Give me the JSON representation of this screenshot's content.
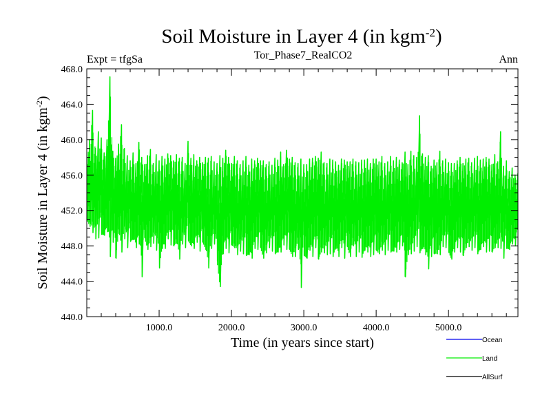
{
  "chart_data": {
    "type": "line",
    "title": "Soil Moisture in Layer 4 (in kgm",
    "title_sup": "-2",
    "title_close": ")",
    "subtitle_left": "Expt = tfgSa",
    "subtitle_center": "Tor_Phase7_RealCO2",
    "subtitle_right": "Ann",
    "xlabel": "Time (in years since start)",
    "ylabel": "Soil Moisture in Layer 4 (in kgm",
    "ylabel_sup": "-2",
    "ylabel_close": ")",
    "xlim": [
      0,
      5960
    ],
    "ylim": [
      440,
      468
    ],
    "xticks": [
      1000,
      2000,
      3000,
      4000,
      5000
    ],
    "xtick_labels": [
      "1000.0",
      "2000.0",
      "3000.0",
      "4000.0",
      "5000.0"
    ],
    "yticks": [
      440,
      444,
      448,
      452,
      456,
      460,
      464,
      468
    ],
    "ytick_labels": [
      "440.0",
      "444.0",
      "448.0",
      "452.0",
      "456.0",
      "460.0",
      "464.0",
      "468.0"
    ],
    "series": [
      {
        "name": "Land",
        "color": "#00ee00",
        "x": [
          0,
          40,
          80,
          120,
          160,
          200,
          240,
          280,
          320,
          360,
          400,
          440,
          480,
          520,
          560,
          600,
          640,
          680,
          720,
          760,
          800,
          840,
          880,
          920,
          960,
          1000,
          1040,
          1080,
          1120,
          1160,
          1200,
          1240,
          1280,
          1320,
          1360,
          1400,
          1440,
          1480,
          1520,
          1560,
          1600,
          1640,
          1680,
          1720,
          1760,
          1800,
          1840,
          1880,
          1920,
          1960,
          2000,
          2040,
          2080,
          2120,
          2160,
          2200,
          2240,
          2280,
          2320,
          2360,
          2400,
          2440,
          2480,
          2520,
          2560,
          2600,
          2640,
          2680,
          2720,
          2760,
          2800,
          2840,
          2880,
          2920,
          2960,
          3000,
          3040,
          3080,
          3120,
          3160,
          3200,
          3240,
          3280,
          3320,
          3360,
          3400,
          3440,
          3480,
          3520,
          3560,
          3600,
          3640,
          3680,
          3720,
          3760,
          3800,
          3840,
          3880,
          3920,
          3960,
          4000,
          4040,
          4080,
          4120,
          4160,
          4200,
          4240,
          4280,
          4320,
          4360,
          4400,
          4440,
          4480,
          4520,
          4560,
          4600,
          4640,
          4680,
          4720,
          4760,
          4800,
          4840,
          4880,
          4920,
          4960,
          5000,
          5040,
          5080,
          5120,
          5160,
          5200,
          5240,
          5280,
          5320,
          5360,
          5400,
          5440,
          5480,
          5520,
          5560,
          5600,
          5640,
          5680,
          5720,
          5760,
          5800,
          5840,
          5880,
          5920,
          5960
        ],
        "max": [
          458.0,
          460.0,
          463.3,
          459.0,
          460.9,
          460.2,
          458.5,
          460.0,
          467.1,
          458.7,
          457.9,
          459.5,
          461.7,
          459.0,
          458.2,
          457.6,
          458.5,
          457.3,
          459.7,
          458.0,
          457.2,
          458.2,
          458.9,
          457.3,
          458.3,
          457.6,
          458.1,
          457.8,
          458.4,
          458.2,
          457.6,
          458.3,
          457.9,
          458.0,
          457.3,
          459.8,
          457.9,
          458.3,
          457.6,
          458.0,
          457.4,
          458.0,
          457.9,
          458.1,
          457.5,
          457.3,
          458.2,
          457.9,
          458.8,
          458.0,
          457.3,
          458.1,
          457.6,
          457.2,
          457.6,
          458.1,
          457.1,
          457.8,
          457.6,
          457.9,
          457.6,
          457.6,
          457.2,
          457.5,
          457.1,
          457.9,
          457.7,
          458.6,
          457.2,
          458.8,
          457.8,
          458.0,
          457.4,
          457.3,
          457.8,
          457.2,
          457.2,
          457.8,
          457.9,
          458.1,
          457.9,
          458.6,
          457.4,
          457.3,
          457.8,
          457.7,
          457.5,
          457.1,
          457.8,
          457.7,
          457.5,
          457.5,
          457.8,
          457.5,
          457.4,
          457.7,
          457.7,
          457.8,
          457.3,
          457.8,
          457.8,
          457.5,
          458.1,
          457.3,
          457.5,
          458.1,
          457.6,
          458.0,
          457.7,
          457.4,
          458.6,
          457.2,
          458.7,
          458.2,
          458.0,
          462.7,
          458.4,
          458.0,
          458.2,
          457.0,
          457.7,
          457.4,
          458.7,
          457.6,
          457.8,
          457.4,
          457.3,
          457.3,
          457.6,
          458.0,
          457.3,
          457.8,
          457.9,
          457.4,
          457.9,
          458.1,
          457.7,
          457.8,
          458.0,
          457.8,
          457.2,
          458.3,
          457.5,
          460.9,
          457.0,
          457.6,
          456.4,
          456.8,
          456.0,
          456.2
        ],
        "min": [
          451.0,
          450.2,
          449.5,
          448.8,
          448.9,
          449.3,
          449.2,
          449.6,
          446.8,
          448.4,
          446.6,
          449.4,
          447.3,
          448.8,
          447.8,
          448.5,
          448.7,
          447.8,
          448.2,
          444.5,
          448.9,
          447.6,
          447.9,
          448.3,
          447.5,
          445.5,
          447.7,
          447.7,
          448.8,
          448.1,
          448.0,
          448.3,
          446.5,
          448.2,
          447.8,
          448.6,
          448.0,
          447.7,
          448.4,
          447.4,
          448.4,
          447.6,
          445.5,
          447.7,
          448.2,
          446.3,
          443.4,
          447.1,
          447.7,
          447.2,
          448.1,
          447.8,
          447.0,
          447.4,
          447.1,
          446.9,
          447.0,
          446.6,
          447.7,
          447.6,
          447.8,
          446.6,
          447.2,
          447.8,
          447.4,
          447.1,
          447.3,
          447.3,
          448.1,
          447.6,
          447.6,
          446.8,
          446.8,
          447.6,
          443.3,
          446.9,
          446.6,
          447.5,
          446.8,
          447.8,
          446.5,
          447.3,
          447.2,
          447.0,
          447.1,
          446.8,
          447.7,
          446.8,
          447.8,
          446.6,
          447.9,
          446.8,
          448.0,
          446.8,
          447.3,
          446.7,
          447.5,
          447.3,
          446.8,
          447.0,
          447.5,
          447.1,
          447.5,
          447.0,
          447.5,
          447.3,
          447.4,
          447.3,
          447.6,
          448.0,
          444.5,
          447.0,
          447.1,
          447.4,
          447.9,
          447.2,
          447.7,
          447.0,
          445.4,
          446.8,
          447.1,
          447.1,
          447.0,
          447.9,
          447.8,
          447.3,
          446.5,
          447.3,
          447.8,
          447.3,
          446.9,
          447.8,
          447.9,
          447.5,
          447.8,
          447.1,
          447.6,
          447.9,
          447.3,
          447.4,
          447.3,
          447.8,
          447.8,
          447.7,
          446.6,
          447.7,
          447.6,
          448.2,
          448.0,
          449.0
        ]
      }
    ],
    "legend": [
      {
        "label": "Ocean",
        "color": "#0000ee"
      },
      {
        "label": "Land",
        "color": "#00ee00"
      },
      {
        "label": "AllSurf",
        "color": "#000000"
      }
    ],
    "legend_position": "bottom-right",
    "grid": false
  }
}
